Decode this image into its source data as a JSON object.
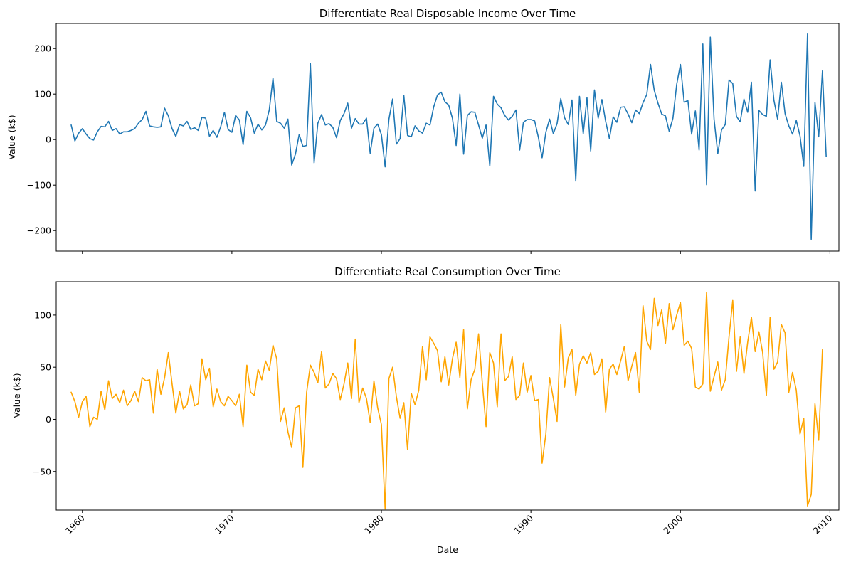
{
  "figure": {
    "shared_xlabel": "Date"
  },
  "chart_data": [
    {
      "type": "line",
      "title": "Differentiate Real Disposable Income Over Time",
      "xlabel": "",
      "ylabel": "Value (k$)",
      "xlim": [
        1958.25,
        2010.6
      ],
      "ylim": [
        -245,
        255
      ],
      "x_ticks": [
        1960,
        1970,
        1980,
        1990,
        2000,
        2010
      ],
      "x_tick_labels": [
        "1960",
        "1970",
        "1980",
        "1990",
        "2000",
        "2010"
      ],
      "x_tick_labels_visible": false,
      "y_ticks": [
        -200,
        -100,
        0,
        100,
        200
      ],
      "y_tick_labels": [
        "−200",
        "−100",
        "0",
        "100",
        "200"
      ],
      "grid": false,
      "legend": "none",
      "series": [
        {
          "color": "#1f77b4",
          "x_start": 1959.25,
          "x_step": 0.25,
          "values": [
            32,
            -3,
            14,
            24,
            12,
            2,
            -1,
            17,
            29,
            28,
            40,
            20,
            24,
            12,
            17,
            17,
            20,
            24,
            36,
            44,
            62,
            30,
            28,
            27,
            28,
            69,
            52,
            24,
            7,
            33,
            30,
            40,
            22,
            26,
            20,
            49,
            47,
            7,
            20,
            5,
            28,
            60,
            22,
            16,
            53,
            43,
            -11,
            62,
            48,
            14,
            34,
            21,
            32,
            65,
            135,
            40,
            36,
            25,
            45,
            -56,
            -32,
            11,
            -15,
            -13,
            167,
            -51,
            36,
            55,
            32,
            35,
            27,
            4,
            42,
            57,
            80,
            25,
            46,
            34,
            34,
            47,
            -30,
            25,
            34,
            11,
            -60,
            44,
            89,
            -10,
            2,
            97,
            9,
            6,
            30,
            19,
            14,
            36,
            32,
            72,
            98,
            104,
            83,
            76,
            47,
            -13,
            100,
            -32,
            53,
            61,
            60,
            32,
            3,
            32,
            -58,
            95,
            78,
            70,
            53,
            43,
            51,
            65,
            -23,
            38,
            44,
            44,
            41,
            5,
            -40,
            16,
            45,
            13,
            35,
            90,
            48,
            33,
            87,
            -91,
            95,
            13,
            92,
            -25,
            109,
            47,
            88,
            40,
            2,
            50,
            38,
            71,
            72,
            56,
            37,
            65,
            57,
            81,
            99,
            165,
            108,
            80,
            56,
            52,
            18,
            47,
            121,
            165,
            82,
            86,
            12,
            63,
            -23,
            210,
            -99,
            225,
            45,
            -31,
            21,
            33,
            131,
            123,
            51,
            39,
            89,
            60,
            126,
            -113,
            64,
            55,
            51,
            175,
            87,
            45,
            126,
            57,
            30,
            12,
            42,
            8,
            -59,
            232,
            -219,
            82,
            6,
            151,
            -37
          ]
        }
      ]
    },
    {
      "type": "line",
      "title": "Differentiate Real Consumption Over Time",
      "xlabel": "Date",
      "ylabel": "Value (k$)",
      "xlim": [
        1958.25,
        2010.6
      ],
      "ylim": [
        -87,
        132
      ],
      "x_ticks": [
        1960,
        1970,
        1980,
        1990,
        2000,
        2010
      ],
      "x_tick_labels": [
        "1960",
        "1970",
        "1980",
        "1990",
        "2000",
        "2010"
      ],
      "x_tick_labels_visible": true,
      "y_ticks": [
        -50,
        0,
        50,
        100
      ],
      "y_tick_labels": [
        "−50",
        "0",
        "50",
        "100"
      ],
      "grid": false,
      "legend": "none",
      "series": [
        {
          "color": "#ffa500",
          "x_start": 1959.25,
          "x_step": 0.25,
          "values": [
            26,
            17,
            2,
            17,
            22,
            -7,
            2,
            0,
            27,
            9,
            37,
            20,
            24,
            16,
            28,
            13,
            18,
            27,
            17,
            40,
            37,
            38,
            6,
            48,
            24,
            40,
            64,
            34,
            6,
            27,
            10,
            14,
            33,
            13,
            15,
            58,
            38,
            49,
            12,
            29,
            17,
            13,
            22,
            18,
            13,
            24,
            -7,
            52,
            26,
            23,
            48,
            38,
            56,
            47,
            71,
            58,
            -2,
            11,
            -12,
            -27,
            11,
            13,
            -46,
            26,
            52,
            45,
            35,
            65,
            30,
            34,
            44,
            39,
            19,
            34,
            54,
            20,
            77,
            16,
            30,
            20,
            -3,
            37,
            11,
            -5,
            -86,
            39,
            50,
            22,
            1,
            16,
            -29,
            25,
            14,
            28,
            70,
            38,
            79,
            73,
            66,
            36,
            60,
            33,
            58,
            74,
            40,
            86,
            10,
            38,
            48,
            82,
            35,
            -7,
            64,
            54,
            12,
            82,
            37,
            41,
            60,
            19,
            23,
            54,
            26,
            42,
            18,
            19,
            -42,
            -14,
            40,
            20,
            -2,
            91,
            31,
            59,
            67,
            23,
            53,
            61,
            54,
            64,
            43,
            46,
            58,
            7,
            48,
            53,
            43,
            56,
            70,
            37,
            51,
            64,
            26,
            109,
            75,
            67,
            116,
            90,
            105,
            73,
            111,
            86,
            100,
            112,
            71,
            75,
            68,
            31,
            29,
            34,
            122,
            27,
            41,
            55,
            28,
            38,
            79,
            114,
            46,
            79,
            44,
            74,
            98,
            65,
            84,
            64,
            23,
            98,
            48,
            55,
            91,
            83,
            26,
            45,
            28,
            -14,
            1,
            -83,
            -72,
            15,
            -20,
            67
          ]
        }
      ]
    }
  ]
}
